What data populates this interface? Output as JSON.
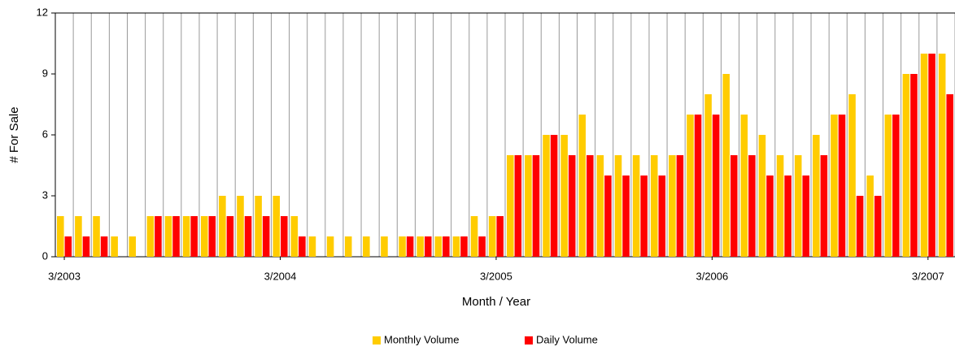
{
  "chart_data": {
    "type": "bar",
    "x_label": "Month / Year",
    "y_label": "# For Sale",
    "categories": [
      "3/2003",
      null,
      null,
      null,
      null,
      null,
      null,
      null,
      null,
      null,
      null,
      null,
      "3/2004",
      null,
      null,
      null,
      null,
      null,
      null,
      null,
      null,
      null,
      null,
      null,
      "3/2005",
      null,
      null,
      null,
      null,
      null,
      null,
      null,
      null,
      null,
      null,
      null,
      "3/2006",
      null,
      null,
      null,
      null,
      null,
      null,
      null,
      null,
      null,
      null,
      null,
      "3/2007",
      null
    ],
    "series": [
      {
        "name": "Monthly Volume",
        "color": "#FFCC00",
        "values": [
          2,
          2,
          2,
          1,
          1,
          2,
          2,
          2,
          2,
          3,
          3,
          3,
          3,
          2,
          1,
          1,
          1,
          1,
          1,
          1,
          1,
          1,
          1,
          2,
          2,
          5,
          5,
          6,
          6,
          7,
          5,
          5,
          5,
          5,
          5,
          7,
          8,
          9,
          7,
          6,
          5,
          5,
          6,
          7,
          8,
          4,
          7,
          9,
          10,
          10
        ]
      },
      {
        "name": "Daily Volume",
        "color": "#FF0000",
        "values": [
          1,
          1,
          1,
          0,
          0,
          2,
          2,
          2,
          2,
          2,
          2,
          2,
          2,
          1,
          0,
          0,
          0,
          0,
          0,
          1,
          1,
          1,
          1,
          1,
          2,
          5,
          5,
          6,
          5,
          5,
          4,
          4,
          4,
          4,
          5,
          7,
          7,
          5,
          5,
          4,
          4,
          4,
          5,
          7,
          3,
          3,
          7,
          9,
          10,
          8
        ]
      }
    ],
    "ylim": [
      0,
      12
    ],
    "yticks": [
      0,
      3,
      6,
      9,
      12
    ],
    "grid": "vertical",
    "legend": "bottom"
  }
}
